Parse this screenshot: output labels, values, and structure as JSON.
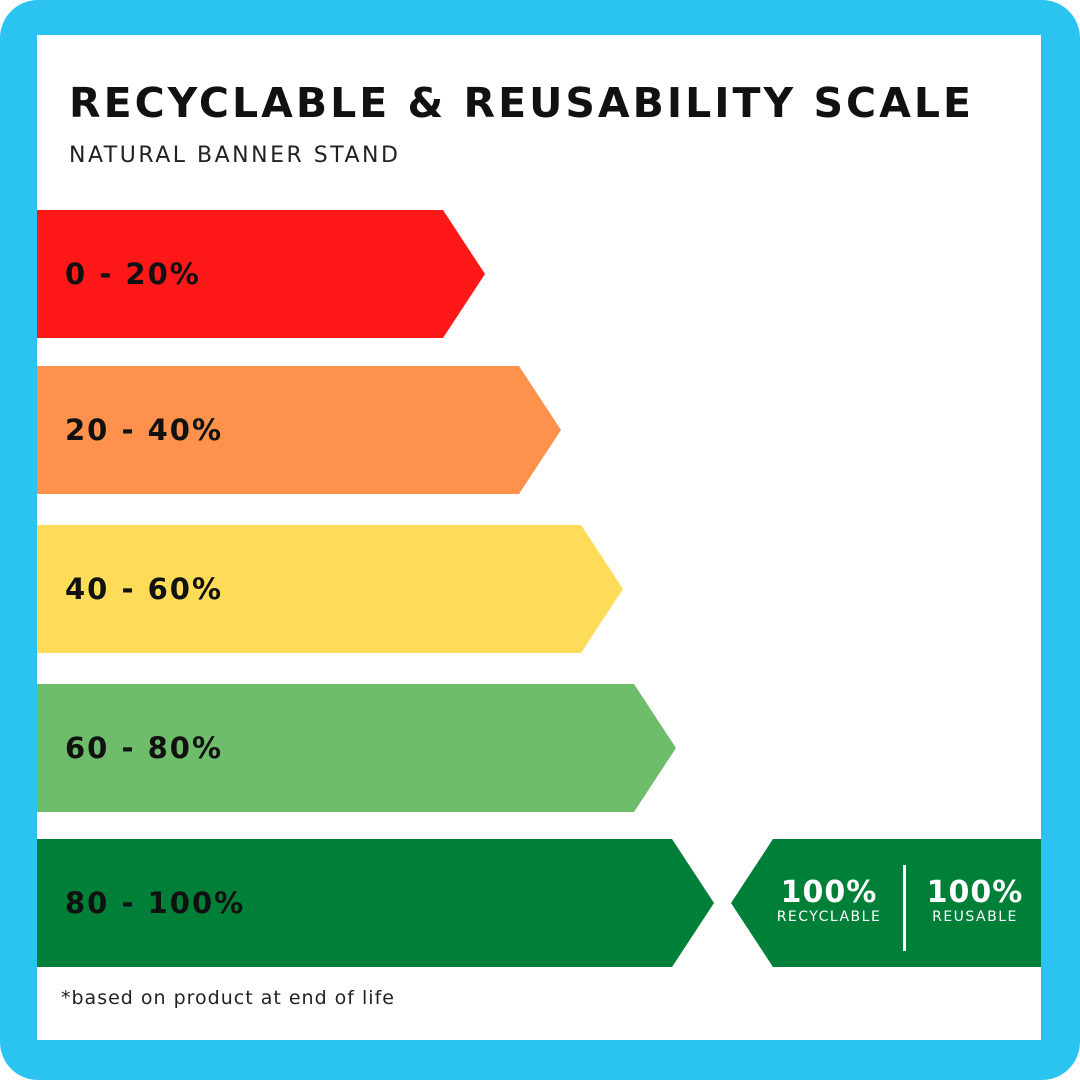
{
  "title": "RECYCLABLE & REUSABILITY SCALE",
  "subtitle": "NATURAL BANNER STAND",
  "bands": [
    {
      "label": "0 - 20%",
      "color": "#fe1818"
    },
    {
      "label": "20 - 40%",
      "color": "#fe914b"
    },
    {
      "label": "40 - 60%",
      "color": "#fedc5a"
    },
    {
      "label": "60 - 80%",
      "color": "#6ebd6b"
    },
    {
      "label": "80 - 100%",
      "color": "#007f38"
    }
  ],
  "badge": {
    "recyclable_value": "100%",
    "recyclable_caption": "RECYCLABLE",
    "reusable_value": "100%",
    "reusable_caption": "REUSABLE",
    "color": "#007f38"
  },
  "footnote": "*based on product at end of life",
  "frame_color": "#2bc3f0"
}
